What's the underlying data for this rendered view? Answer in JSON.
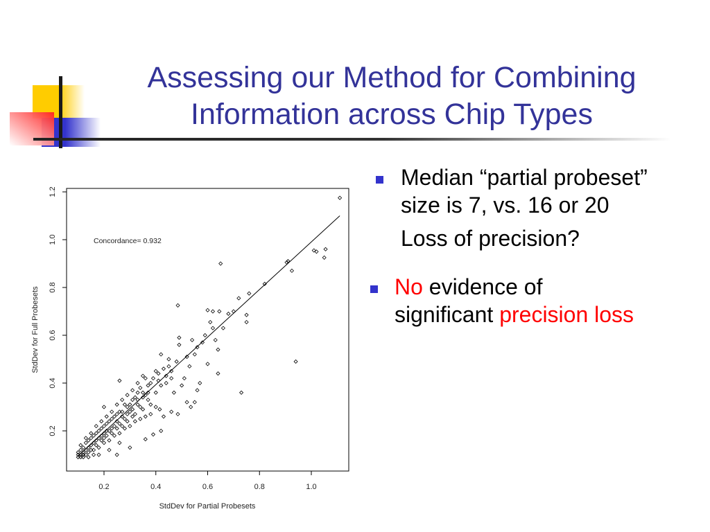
{
  "slide": {
    "title_line1": "Assessing our Method for Combining",
    "title_line2": "Information across Chip Types",
    "title_color": "#333399",
    "bullet_color": "#3333cc",
    "highlight_color": "#ff0000",
    "bullets": [
      {
        "line1": "Median “partial probeset”",
        "line2": "size is 7, vs. 16 or 20",
        "line3": "Loss of precision?"
      },
      {
        "part1": "No",
        "part2": " evidence of",
        "part3": "significant ",
        "part4": "precision loss"
      }
    ]
  },
  "chart_data": {
    "type": "scatter",
    "xlabel": "StdDev for Partial Probesets",
    "ylabel": "StdDev for Full Probesets",
    "annotation": "Concordance= 0.932",
    "xlim": [
      0.07,
      1.13
    ],
    "ylim": [
      0.06,
      1.21
    ],
    "xticks": [
      "0.2",
      "0.4",
      "0.6",
      "0.8",
      "1.0"
    ],
    "xtick_values": [
      0.2,
      0.4,
      0.6,
      0.8,
      1.0
    ],
    "yticks": [
      "0.2",
      "0.4",
      "0.6",
      "0.8",
      "1.0",
      "1.2"
    ],
    "ytick_values": [
      0.2,
      0.4,
      0.6,
      0.8,
      1.0,
      1.2
    ],
    "grid": false,
    "marker": "open-diamond",
    "fit_line": {
      "from": [
        0.1,
        0.095
      ],
      "to": [
        1.11,
        1.1
      ]
    },
    "points": [
      [
        1.11,
        1.175
      ],
      [
        0.65,
        0.9
      ],
      [
        0.485,
        0.725
      ],
      [
        0.91,
        0.91
      ],
      [
        0.905,
        0.905
      ],
      [
        0.925,
        0.87
      ],
      [
        1.01,
        0.955
      ],
      [
        1.02,
        0.95
      ],
      [
        1.05,
        0.925
      ],
      [
        1.055,
        0.96
      ],
      [
        0.94,
        0.49
      ],
      [
        0.73,
        0.36
      ],
      [
        0.64,
        0.44
      ],
      [
        0.82,
        0.815
      ],
      [
        0.76,
        0.775
      ],
      [
        0.72,
        0.755
      ],
      [
        0.75,
        0.685
      ],
      [
        0.75,
        0.655
      ],
      [
        0.6,
        0.705
      ],
      [
        0.645,
        0.7
      ],
      [
        0.62,
        0.7
      ],
      [
        0.64,
        0.54
      ],
      [
        0.6,
        0.48
      ],
      [
        0.57,
        0.4
      ],
      [
        0.56,
        0.37
      ],
      [
        0.55,
        0.32
      ],
      [
        0.535,
        0.3
      ],
      [
        0.52,
        0.32
      ],
      [
        0.49,
        0.59
      ],
      [
        0.49,
        0.56
      ],
      [
        0.485,
        0.27
      ],
      [
        0.46,
        0.28
      ],
      [
        0.42,
        0.2
      ],
      [
        0.415,
        0.29
      ],
      [
        0.43,
        0.26
      ],
      [
        0.26,
        0.41
      ],
      [
        0.25,
        0.1
      ],
      [
        0.2,
        0.3
      ],
      [
        0.3,
        0.13
      ],
      [
        0.36,
        0.165
      ],
      [
        0.39,
        0.185
      ],
      [
        0.47,
        0.36
      ],
      [
        0.5,
        0.39
      ],
      [
        0.51,
        0.42
      ],
      [
        0.53,
        0.47
      ],
      [
        0.55,
        0.52
      ],
      [
        0.58,
        0.57
      ],
      [
        0.62,
        0.63
      ],
      [
        0.66,
        0.63
      ],
      [
        0.63,
        0.58
      ],
      [
        0.45,
        0.5
      ],
      [
        0.4,
        0.45
      ],
      [
        0.36,
        0.42
      ],
      [
        0.33,
        0.36
      ],
      [
        0.3,
        0.31
      ],
      [
        0.68,
        0.69
      ],
      [
        0.7,
        0.7
      ],
      [
        0.61,
        0.655
      ],
      [
        0.59,
        0.6
      ],
      [
        0.56,
        0.55
      ],
      [
        0.54,
        0.58
      ],
      [
        0.52,
        0.51
      ],
      [
        0.48,
        0.49
      ],
      [
        0.46,
        0.45
      ],
      [
        0.44,
        0.43
      ],
      [
        0.42,
        0.52
      ],
      [
        0.41,
        0.41
      ],
      [
        0.38,
        0.4
      ],
      [
        0.37,
        0.33
      ],
      [
        0.35,
        0.36
      ],
      [
        0.34,
        0.3
      ],
      [
        0.32,
        0.34
      ],
      [
        0.31,
        0.26
      ],
      [
        0.29,
        0.3
      ],
      [
        0.28,
        0.25
      ],
      [
        0.27,
        0.28
      ],
      [
        0.26,
        0.23
      ],
      [
        0.25,
        0.27
      ],
      [
        0.24,
        0.22
      ],
      [
        0.23,
        0.25
      ],
      [
        0.22,
        0.2
      ],
      [
        0.21,
        0.23
      ],
      [
        0.2,
        0.19
      ],
      [
        0.19,
        0.21
      ],
      [
        0.18,
        0.17
      ],
      [
        0.17,
        0.19
      ],
      [
        0.16,
        0.15
      ],
      [
        0.15,
        0.17
      ],
      [
        0.14,
        0.13
      ],
      [
        0.13,
        0.15
      ],
      [
        0.12,
        0.11
      ],
      [
        0.11,
        0.12
      ],
      [
        0.1,
        0.09
      ],
      [
        0.1,
        0.1
      ],
      [
        0.11,
        0.09
      ],
      [
        0.12,
        0.13
      ],
      [
        0.13,
        0.12
      ],
      [
        0.14,
        0.16
      ],
      [
        0.15,
        0.14
      ],
      [
        0.16,
        0.18
      ],
      [
        0.17,
        0.14
      ],
      [
        0.18,
        0.2
      ],
      [
        0.19,
        0.16
      ],
      [
        0.2,
        0.22
      ],
      [
        0.21,
        0.18
      ],
      [
        0.22,
        0.24
      ],
      [
        0.23,
        0.19
      ],
      [
        0.24,
        0.26
      ],
      [
        0.25,
        0.21
      ],
      [
        0.26,
        0.28
      ],
      [
        0.27,
        0.22
      ],
      [
        0.28,
        0.31
      ],
      [
        0.29,
        0.24
      ],
      [
        0.3,
        0.28
      ],
      [
        0.31,
        0.33
      ],
      [
        0.32,
        0.27
      ],
      [
        0.33,
        0.31
      ],
      [
        0.34,
        0.38
      ],
      [
        0.35,
        0.29
      ],
      [
        0.36,
        0.35
      ],
      [
        0.37,
        0.39
      ],
      [
        0.38,
        0.31
      ],
      [
        0.39,
        0.42
      ],
      [
        0.4,
        0.36
      ],
      [
        0.41,
        0.44
      ],
      [
        0.42,
        0.39
      ],
      [
        0.43,
        0.46
      ],
      [
        0.44,
        0.4
      ],
      [
        0.45,
        0.47
      ],
      [
        0.46,
        0.42
      ],
      [
        0.12,
        0.1
      ],
      [
        0.14,
        0.11
      ],
      [
        0.16,
        0.12
      ],
      [
        0.18,
        0.13
      ],
      [
        0.2,
        0.15
      ],
      [
        0.22,
        0.16
      ],
      [
        0.24,
        0.18
      ],
      [
        0.26,
        0.19
      ],
      [
        0.28,
        0.21
      ],
      [
        0.3,
        0.22
      ],
      [
        0.32,
        0.24
      ],
      [
        0.34,
        0.25
      ],
      [
        0.36,
        0.26
      ],
      [
        0.38,
        0.27
      ],
      [
        0.4,
        0.3
      ],
      [
        0.11,
        0.14
      ],
      [
        0.13,
        0.17
      ],
      [
        0.15,
        0.19
      ],
      [
        0.17,
        0.22
      ],
      [
        0.19,
        0.24
      ],
      [
        0.21,
        0.26
      ],
      [
        0.23,
        0.28
      ],
      [
        0.25,
        0.31
      ],
      [
        0.27,
        0.33
      ],
      [
        0.29,
        0.35
      ],
      [
        0.31,
        0.37
      ],
      [
        0.33,
        0.4
      ],
      [
        0.35,
        0.43
      ],
      [
        0.15,
        0.12
      ],
      [
        0.17,
        0.16
      ],
      [
        0.19,
        0.18
      ],
      [
        0.21,
        0.2
      ],
      [
        0.23,
        0.21
      ],
      [
        0.25,
        0.24
      ],
      [
        0.27,
        0.26
      ],
      [
        0.29,
        0.27
      ],
      [
        0.31,
        0.29
      ],
      [
        0.33,
        0.33
      ],
      [
        0.35,
        0.34
      ],
      [
        0.37,
        0.36
      ],
      [
        0.18,
        0.1
      ],
      [
        0.22,
        0.12
      ],
      [
        0.26,
        0.15
      ],
      [
        0.16,
        0.1
      ],
      [
        0.14,
        0.09
      ],
      [
        0.12,
        0.09
      ],
      [
        0.1,
        0.11
      ],
      [
        0.11,
        0.1
      ],
      [
        0.13,
        0.1
      ],
      [
        0.2,
        0.17
      ]
    ]
  }
}
